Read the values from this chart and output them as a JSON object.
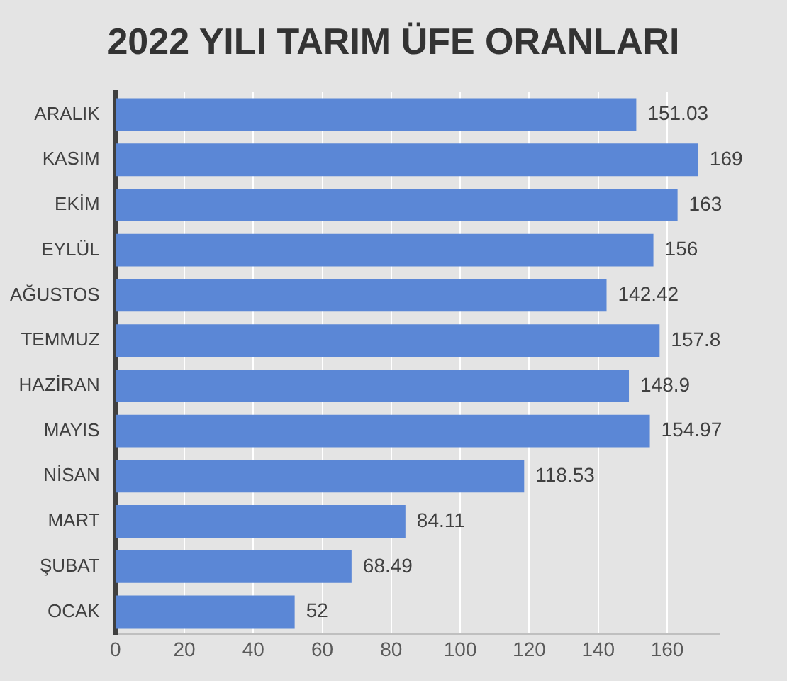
{
  "chart_data": {
    "type": "bar",
    "orientation": "horizontal",
    "title": "2022 YILI TARIM ÜFE ORANLARI",
    "categories": [
      "ARALIK",
      "KASIM",
      "EKİM",
      "EYLÜL",
      "AĞUSTOS",
      "TEMMUZ",
      "HAZİRAN",
      "MAYIS",
      "NİSAN",
      "MART",
      "ŞUBAT",
      "OCAK"
    ],
    "values": [
      151.03,
      169,
      163,
      156,
      142.42,
      157.8,
      148.9,
      154.97,
      118.53,
      84.11,
      68.49,
      52
    ],
    "color": "#5b87d6",
    "xlim": [
      0,
      175
    ],
    "xticks": [
      0,
      20,
      40,
      60,
      80,
      100,
      120,
      140,
      160
    ],
    "grid": "x",
    "data_labels": true
  }
}
